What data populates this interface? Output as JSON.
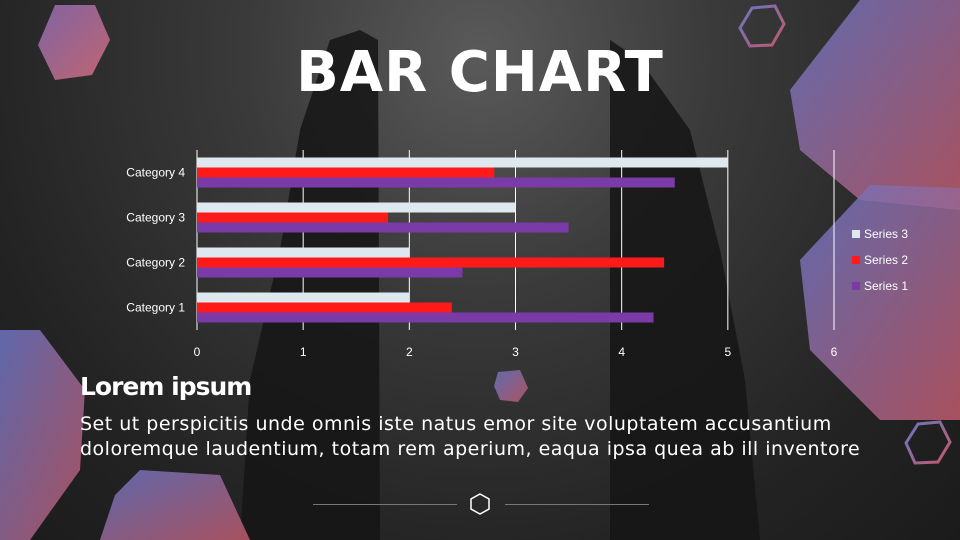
{
  "slide": {
    "title": "BAR CHART",
    "heading": "Lorem ipsum",
    "body_line_1": "Set ut perspicitis unde omnis iste natus emor site voluptatem accusantium",
    "body_line_2": "doloremque laudentium, totam rem aperium, eaqua ipsa quea ab ill inventore"
  },
  "colors": {
    "series_3": "#dde9ee",
    "series_2": "#ff1a1a",
    "series_1": "#7a3aa8",
    "axis_text": "#ffffff",
    "grid": "#ffffff"
  },
  "chart_data": {
    "type": "bar",
    "orientation": "horizontal",
    "categories": [
      "Category 1",
      "Category 2",
      "Category 3",
      "Category 4"
    ],
    "series": [
      {
        "name": "Series 1",
        "values": [
          4.3,
          2.5,
          3.5,
          4.5
        ]
      },
      {
        "name": "Series 2",
        "values": [
          2.4,
          4.4,
          1.8,
          2.8
        ]
      },
      {
        "name": "Series 3",
        "values": [
          2,
          2,
          3,
          5
        ]
      }
    ],
    "xlim": [
      0,
      6
    ],
    "xticks": [
      "0",
      "1",
      "2",
      "3",
      "4",
      "5",
      "6"
    ],
    "grid": "vertical",
    "legend_position": "right",
    "legend_order": [
      "Series 3",
      "Series 2",
      "Series 1"
    ]
  }
}
